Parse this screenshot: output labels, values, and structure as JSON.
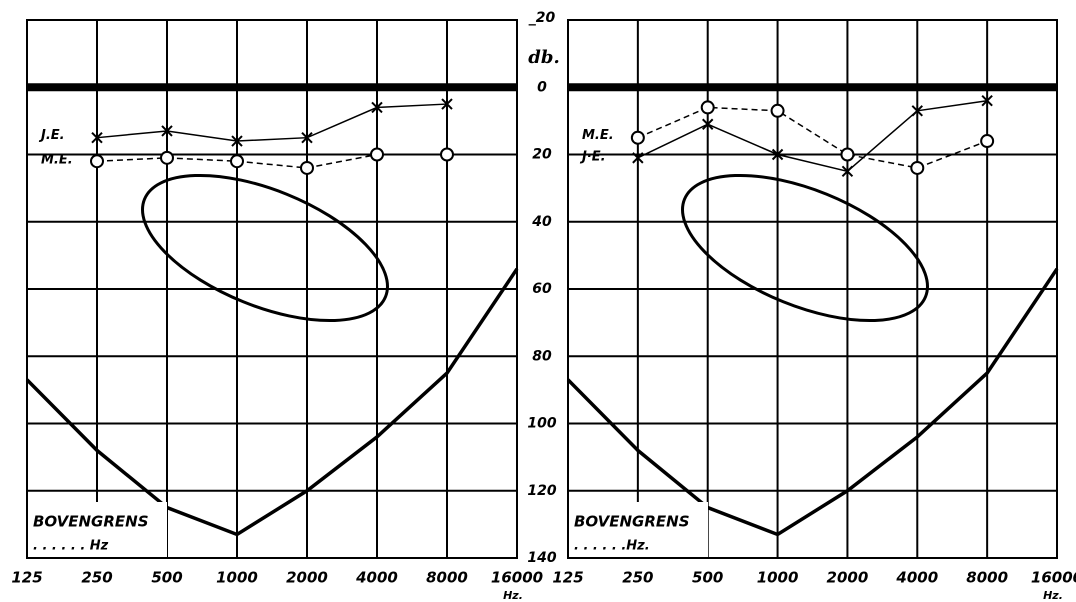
{
  "chart_data": [
    {
      "type": "line",
      "xscale": "log",
      "xlim": [
        125,
        16000
      ],
      "xticks": [
        125,
        250,
        500,
        1000,
        2000,
        4000,
        8000,
        16000
      ],
      "ylim": [
        -20,
        140
      ],
      "yinvert": true,
      "yticks": [
        {
          "value": -20,
          "label": "_20"
        },
        0,
        20,
        40,
        60,
        80,
        100,
        120,
        140
      ],
      "ylabel": "db.",
      "xlabel": "Hz.",
      "thick_line": 0,
      "grid": true,
      "annotation": "BOVENGRENS",
      "annotation_sub": ". . . . . . Hz",
      "x": [
        250,
        500,
        1000,
        2000,
        4000,
        8000
      ],
      "series": [
        {
          "name": "J.E.",
          "color": "#000000",
          "marker": "x",
          "dashed": false,
          "values": [
            15,
            13,
            16,
            15,
            6,
            5
          ]
        },
        {
          "name": "M.E.",
          "color": "#000000",
          "marker": "o",
          "dashed": true,
          "values": [
            22,
            21,
            22,
            24,
            20,
            20
          ]
        }
      ],
      "limit_curve": {
        "x": [
          125,
          250,
          500,
          1000,
          2000,
          4000,
          8000,
          16000
        ],
        "values": [
          87,
          108,
          125,
          133,
          120,
          104,
          85,
          54
        ]
      }
    },
    {
      "type": "line",
      "xscale": "log",
      "xlim": [
        125,
        16000
      ],
      "xticks": [
        125,
        250,
        500,
        1000,
        2000,
        4000,
        8000,
        16000
      ],
      "ylim": [
        -20,
        140
      ],
      "yinvert": true,
      "xlabel": "Hz.",
      "thick_line": 0,
      "grid": true,
      "annotation": "BOVENGRENS",
      "annotation_sub": ". . . . . .Hz.",
      "x": [
        250,
        500,
        1000,
        2000,
        4000,
        8000
      ],
      "series": [
        {
          "name": "M.E.",
          "color": "#000000",
          "marker": "o",
          "dashed": true,
          "values": [
            15,
            6,
            7,
            20,
            24,
            16
          ]
        },
        {
          "name": "J·E.",
          "color": "#000000",
          "marker": "x",
          "dashed": false,
          "values": [
            21,
            11,
            20,
            25,
            7,
            4
          ]
        }
      ],
      "limit_curve": {
        "x": [
          125,
          250,
          500,
          1000,
          2000,
          4000,
          8000,
          16000
        ],
        "values": [
          87,
          108,
          125,
          133,
          120,
          104,
          85,
          54
        ]
      }
    }
  ]
}
